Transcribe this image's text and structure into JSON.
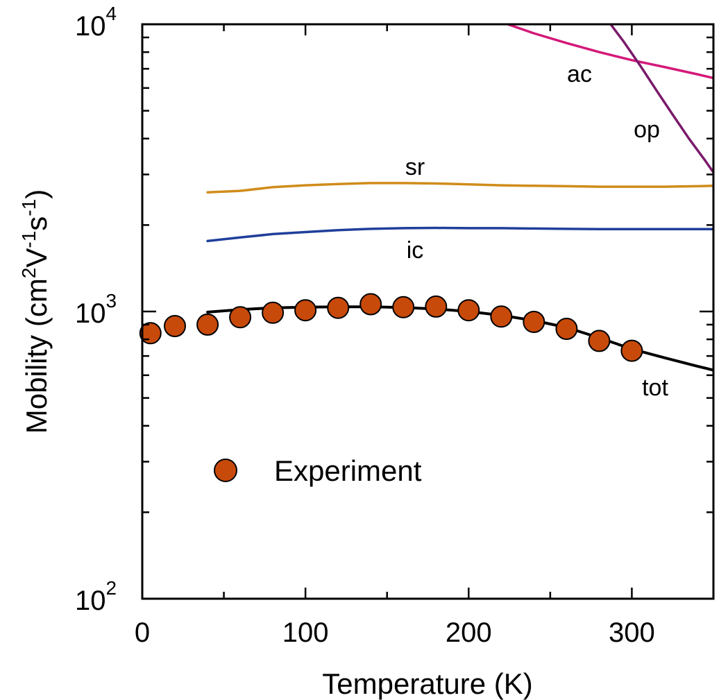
{
  "chart_data": {
    "type": "line",
    "xlabel": "Temperature (K)",
    "ylabel": {
      "prefix": "Mobility (cm",
      "exp1": "2",
      "mid1": "V",
      "exp2": "-1",
      "mid2": "s",
      "exp3": "-1",
      "suffix": ")"
    },
    "xlim": [
      0,
      350
    ],
    "ylim": [
      100,
      10000
    ],
    "yscale": "log",
    "xticks": [
      0,
      100,
      200,
      300
    ],
    "xminor": [
      50,
      150,
      250
    ],
    "yticks": [
      {
        "value": 100,
        "base": "10",
        "exp": "2"
      },
      {
        "value": 1000,
        "base": "10",
        "exp": "3"
      },
      {
        "value": 10000,
        "base": "10",
        "exp": "4"
      }
    ],
    "series": [
      {
        "name": "ac",
        "label": "ac",
        "color": "#d4197a",
        "x": [
          224,
          240,
          260,
          280,
          300,
          320,
          340,
          350
        ],
        "y": [
          10000,
          9300,
          8600,
          8000,
          7500,
          7100,
          6700,
          6500
        ]
      },
      {
        "name": "op",
        "label": "op",
        "color": "#7a1a6a",
        "x": [
          287,
          295,
          305,
          315,
          325,
          335,
          345,
          350
        ],
        "y": [
          10000,
          8700,
          7200,
          5900,
          4850,
          4000,
          3350,
          3050
        ]
      },
      {
        "name": "sr",
        "label": "sr",
        "color": "#d08c1a",
        "x": [
          40,
          60,
          80,
          100,
          120,
          140,
          160,
          180,
          200,
          220,
          240,
          260,
          280,
          300,
          320,
          340,
          350
        ],
        "y": [
          2600,
          2630,
          2710,
          2750,
          2780,
          2800,
          2800,
          2790,
          2770,
          2750,
          2740,
          2730,
          2720,
          2720,
          2720,
          2730,
          2740
        ]
      },
      {
        "name": "ic",
        "label": "ic",
        "color": "#1f3f9a",
        "x": [
          40,
          60,
          80,
          100,
          120,
          140,
          160,
          180,
          200,
          220,
          240,
          260,
          280,
          300,
          320,
          340,
          350
        ],
        "y": [
          1760,
          1810,
          1860,
          1890,
          1920,
          1940,
          1950,
          1955,
          1950,
          1950,
          1945,
          1940,
          1935,
          1935,
          1935,
          1935,
          1935
        ]
      },
      {
        "name": "tot",
        "label": "tot",
        "color": "#000000",
        "x": [
          40,
          60,
          80,
          100,
          120,
          140,
          160,
          180,
          200,
          220,
          240,
          260,
          280,
          300,
          320,
          340,
          350
        ],
        "y": [
          995,
          1015,
          1030,
          1035,
          1038,
          1038,
          1033,
          1020,
          1000,
          970,
          930,
          880,
          810,
          740,
          690,
          645,
          625
        ]
      }
    ],
    "experiment": {
      "name": "Experiment",
      "color": "#c84a0a",
      "x": [
        5,
        20,
        40,
        60,
        80,
        100,
        120,
        140,
        160,
        180,
        200,
        220,
        240,
        260,
        280,
        300
      ],
      "y": [
        840,
        890,
        900,
        955,
        990,
        1010,
        1030,
        1060,
        1035,
        1040,
        1010,
        960,
        920,
        870,
        790,
        730
      ]
    },
    "legend": {
      "label": "Experiment",
      "placement": "lower-left"
    }
  }
}
